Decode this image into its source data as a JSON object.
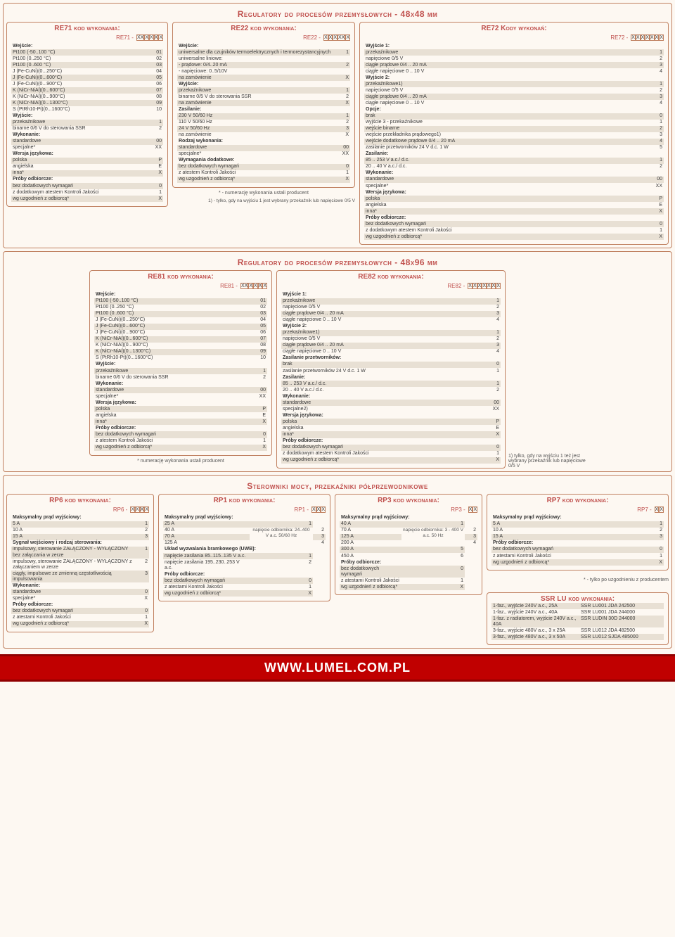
{
  "sec1_title": "Regulatory do procesów przemysłowych - 48x48 mm",
  "sec2_title": "Regulatory do procesów przemysłowych - 48x96 mm",
  "sec3_title": "Sterowniki mocy, przekaźniki półprzewodnikowe",
  "footer": "WWW.LUMEL.COM.PL",
  "re71": {
    "title": "RE71 kod wykonania:",
    "code_label": "RE71 -",
    "code_cells": [
      "XX",
      "X",
      "X",
      "X",
      "X"
    ],
    "rows": [
      {
        "h": "Wejście:"
      },
      {
        "l": "Pt100 (-50..100 °C)",
        "v": "01",
        "s": 1
      },
      {
        "l": "Pt100 (0..250 °C)",
        "v": "02"
      },
      {
        "l": "Pt100 (0..600 °C)",
        "v": "03",
        "s": 1
      },
      {
        "l": "J (Fe-CuNi)(0...250°C)",
        "v": "04"
      },
      {
        "l": "J (Fe-CuNi)(0...600°C)",
        "v": "05",
        "s": 1
      },
      {
        "l": "J (Fe-CuNi)(0...900°C)",
        "v": "06"
      },
      {
        "l": "K (NiCr-NiAl)(0...600°C)",
        "v": "07",
        "s": 1
      },
      {
        "l": "K (NiCr-NiAl)(0...900°C)",
        "v": "08"
      },
      {
        "l": "K (NiCr-NiAl)(0...1300°C)",
        "v": "09",
        "s": 1
      },
      {
        "l": "S (PtRh10-Pt)(0...1600°C)",
        "v": "10"
      },
      {
        "h": "Wyjście:"
      },
      {
        "l": "przekaźnikowe",
        "v": "1",
        "s": 1
      },
      {
        "l": "binarne 0/6 V do sterowania SSR",
        "v": "2"
      },
      {
        "h": "Wykonanie:"
      },
      {
        "l": "standardowe",
        "v": "00",
        "s": 1
      },
      {
        "l": "specjalne*",
        "v": "XX"
      },
      {
        "h": "Wersja językowa:"
      },
      {
        "l": "polska",
        "v": "P",
        "s": 1
      },
      {
        "l": "angielska",
        "v": "E"
      },
      {
        "l": "inna*",
        "v": "X",
        "s": 1
      },
      {
        "h": "Próby odbiorcze:"
      },
      {
        "l": "bez dodatkowych wymagań",
        "v": "0",
        "s": 1
      },
      {
        "l": "z dodatkowym atestem Kontroli Jakości",
        "v": "1"
      },
      {
        "l": "wg uzgodnień z odbiorcą*",
        "v": "X",
        "s": 1
      }
    ]
  },
  "re22": {
    "title": "RE22 kod wykonania:",
    "code_label": "RE22 -",
    "code_cells": [
      "X",
      "X",
      "X",
      "XX",
      "X"
    ],
    "rows": [
      {
        "h": "Wejście:"
      },
      {
        "l": "uniwersalne dla czujników termoelektrycznych i termorezystancyjnych",
        "v": "1",
        "s": 1
      },
      {
        "l": "uniwersalne liniowe:",
        "v": ""
      },
      {
        "l": "- prądowe: 0/4..20 mA",
        "v": "2",
        "s": 1
      },
      {
        "l": "- napięciowe: 0..5/10V",
        "v": ""
      },
      {
        "l": "na zamówienie",
        "v": "X",
        "s": 1
      },
      {
        "h": "Wyjście:"
      },
      {
        "l": "przekaźnikowe",
        "v": "1",
        "s": 1
      },
      {
        "l": "binarne 0/5 V do sterowania SSR",
        "v": "2"
      },
      {
        "l": "na zamówienie",
        "v": "X",
        "s": 1
      },
      {
        "h": "Zasilanie:"
      },
      {
        "l": "230 V 50/60 Hz",
        "v": "1",
        "s": 1
      },
      {
        "l": "110 V 50/60 Hz",
        "v": "2"
      },
      {
        "l": "24 V 50/60 Hz",
        "v": "3",
        "s": 1
      },
      {
        "l": "na zamówienie",
        "v": "X"
      },
      {
        "h": "Rodzaj wykonania:"
      },
      {
        "l": "standardowe",
        "v": "00",
        "s": 1
      },
      {
        "l": "specjalne*",
        "v": "XX"
      },
      {
        "h": "Wymagania dodatkowe:"
      },
      {
        "l": "bez dodatkowych wymagań",
        "v": "0",
        "s": 1
      },
      {
        "l": "z atestem Kontroli Jakości",
        "v": "1"
      },
      {
        "l": "wg uzgodnień z odbiorcą*",
        "v": "X",
        "s": 1
      }
    ],
    "foot1": "* - numerację wykonania ustali producent",
    "foot2": "1) - tylko, gdy na wyjściu 1 jest wybrany przekaźnik lub napięciowe 0/5 V"
  },
  "re72": {
    "title": "RE72 Kody wykonań:",
    "code_label": "RE72 -",
    "code_cells": [
      "X",
      "X",
      "X",
      "X",
      "X",
      "X",
      "X"
    ],
    "rows": [
      {
        "h": "Wyjście 1:"
      },
      {
        "l": "przekaźnikowe",
        "v": "1",
        "s": 1
      },
      {
        "l": "napięciowe 0/5 V",
        "v": "2"
      },
      {
        "l": "ciągłe prądowe 0/4 .. 20 mA",
        "v": "3",
        "s": 1
      },
      {
        "l": "ciągłe napięciowe 0 .. 10 V",
        "v": "4"
      },
      {
        "h": "Wyjście 2:"
      },
      {
        "l": "przekaźnikowe1)",
        "v": "1",
        "s": 1
      },
      {
        "l": "napięciowe 0/5 V",
        "v": "2"
      },
      {
        "l": "ciągłe prądowe 0/4 .. 20 mA",
        "v": "3",
        "s": 1
      },
      {
        "l": "ciągłe napięciowe 0 .. 10 V",
        "v": "4"
      },
      {
        "h": "Opcje:"
      },
      {
        "l": "brak",
        "v": "0",
        "s": 1
      },
      {
        "l": "wyjście 3 - przekaźnikowe",
        "v": "1"
      },
      {
        "l": "wejście binarne",
        "v": "2",
        "s": 1
      },
      {
        "l": "wejście przekładnika prądowego1)",
        "v": "3"
      },
      {
        "l": "wejście dodatkowe prądowe 0/4 .. 20 mA",
        "v": "4",
        "s": 1
      },
      {
        "l": "zasilanie przetworników 24 V d.c. 1 W",
        "v": "5"
      },
      {
        "h": "Zasilanie:"
      },
      {
        "l": "85 .. 253 V a.c./ d.c.",
        "v": "1",
        "s": 1
      },
      {
        "l": "20 .. 40 V a.c./ d.c.",
        "v": "2"
      },
      {
        "h": "Wykonanie:"
      },
      {
        "l": "standardowe",
        "v": "00",
        "s": 1
      },
      {
        "l": "specjalne*",
        "v": "XX"
      },
      {
        "h": "Wersja językowa:"
      },
      {
        "l": "polska",
        "v": "P",
        "s": 1
      },
      {
        "l": "angielska",
        "v": "E"
      },
      {
        "l": "inna*",
        "v": "X",
        "s": 1
      },
      {
        "h": "Próby odbiorcze:"
      },
      {
        "l": "bez dodatkowych wymagań",
        "v": "0",
        "s": 1
      },
      {
        "l": "z dodatkowym atestem Kontroli Jakości",
        "v": "1"
      },
      {
        "l": "wg uzgodnień z odbiorcą*",
        "v": "X",
        "s": 1
      }
    ]
  },
  "re81": {
    "title": "RE81 kod wykonania:",
    "code_label": "RE81 -",
    "code_cells": [
      "XX",
      "X",
      "X",
      "X",
      "X"
    ],
    "rows": [
      {
        "h": "Wejście:"
      },
      {
        "l": "Pt100 (-50..100 °C)",
        "v": "01",
        "s": 1
      },
      {
        "l": "Pt100 (0..250 °C)",
        "v": "02"
      },
      {
        "l": "Pt100 (0..600 °C)",
        "v": "03",
        "s": 1
      },
      {
        "l": "J (Fe-CuNi)(0...250°C)",
        "v": "04"
      },
      {
        "l": "J (Fe-CuNi)(0...600°C)",
        "v": "05",
        "s": 1
      },
      {
        "l": "J (Fe-CuNi)(0...900°C)",
        "v": "06"
      },
      {
        "l": "K (NiCr-NiAl)(0...600°C)",
        "v": "07",
        "s": 1
      },
      {
        "l": "K (NiCr-NiAl)(0...900°C)",
        "v": "08"
      },
      {
        "l": "K (NiCr-NiAl)(0...1300°C)",
        "v": "09",
        "s": 1
      },
      {
        "l": "S (PtRh10-Pt)(0...1600°C)",
        "v": "10"
      },
      {
        "h": "Wyjście:"
      },
      {
        "l": "przekaźnikowe",
        "v": "1",
        "s": 1
      },
      {
        "l": "binarne 0/6 V do sterowania SSR",
        "v": "2"
      },
      {
        "h": "Wykonanie:"
      },
      {
        "l": "standardowe",
        "v": "00",
        "s": 1
      },
      {
        "l": "specjalne*",
        "v": "XX"
      },
      {
        "h": "Wersja językowa:"
      },
      {
        "l": "polska",
        "v": "P",
        "s": 1
      },
      {
        "l": "angielska",
        "v": "E"
      },
      {
        "l": "inna*",
        "v": "X",
        "s": 1
      },
      {
        "h": "Próby odbiorcze:"
      },
      {
        "l": "bez dodatkowych wymagań",
        "v": "0",
        "s": 1
      },
      {
        "l": "z atestem Kontroli Jakości",
        "v": "1"
      },
      {
        "l": "wg uzgodnień z odbiorcą*",
        "v": "X",
        "s": 1
      }
    ],
    "foot": "* numerację wykonania ustali producent"
  },
  "re82": {
    "title": "RE82 kod wykonania:",
    "code_label": "RE82 -",
    "code_cells": [
      "X",
      "X",
      "X",
      "X",
      "X",
      "X",
      "X"
    ],
    "rows": [
      {
        "h": "Wyjście 1:"
      },
      {
        "l": "przekaźnikowe",
        "v": "1",
        "s": 1
      },
      {
        "l": "napięciowe 0/5 V",
        "v": "2"
      },
      {
        "l": "ciągłe prądowe 0/4 .. 20 mA",
        "v": "3",
        "s": 1
      },
      {
        "l": "ciągłe napięciowe 0 .. 10 V",
        "v": "4"
      },
      {
        "h": "Wyjście 2:"
      },
      {
        "l": "przekaźnikowe1)",
        "v": "1",
        "s": 1
      },
      {
        "l": "napięciowe 0/5 V",
        "v": "2"
      },
      {
        "l": "ciągłe prądowe 0/4 .. 20 mA",
        "v": "3",
        "s": 1
      },
      {
        "l": "ciągłe napięciowe 0 .. 10 V",
        "v": "4"
      },
      {
        "h": "Zasilanie przetworników:"
      },
      {
        "l": "brak",
        "v": "0",
        "s": 1
      },
      {
        "l": "zasilanie przetworników 24 V d.c. 1 W",
        "v": "1"
      },
      {
        "h": "Zasilanie:"
      },
      {
        "l": "85 .. 253 V a.c./ d.c.",
        "v": "1",
        "s": 1
      },
      {
        "l": "20 .. 40 V a.c./ d.c.",
        "v": "2"
      },
      {
        "h": "Wykonanie:"
      },
      {
        "l": "standardowe",
        "v": "00",
        "s": 1
      },
      {
        "l": "specjalne2)",
        "v": "XX"
      },
      {
        "h": "Wersja językowa:"
      },
      {
        "l": "polska",
        "v": "P",
        "s": 1
      },
      {
        "l": "angielska",
        "v": "E"
      },
      {
        "l": "inna*",
        "v": "X",
        "s": 1
      },
      {
        "h": "Próby odbiorcze:"
      },
      {
        "l": "bez dodatkowych wymagań",
        "v": "0",
        "s": 1
      },
      {
        "l": "z dodatkowym atestem Kontroli Jakości",
        "v": "1"
      },
      {
        "l": "wg uzgodnień z odbiorcą*",
        "v": "X",
        "s": 1
      }
    ],
    "foot": "1) tylko, gdy na wyjściu 1 też jest wybrany przekaźnik lub napięciowe 0/5 V"
  },
  "rp6": {
    "title": "RP6 kod wykonania:",
    "code_label": "RP6 -",
    "code_cells": [
      "X",
      "X",
      "X",
      "X"
    ],
    "rows": [
      {
        "h": "Maksymalny prąd wyjściowy:"
      },
      {
        "l": "5 A",
        "v": "1",
        "s": 1
      },
      {
        "l": "10 A",
        "v": "2"
      },
      {
        "l": "15 A",
        "v": "3",
        "s": 1
      },
      {
        "h": "Sygnał wejściowy i rodzaj sterowania:"
      },
      {
        "l": "impulsowy, sterowanie ZAŁĄCZONY - WYŁĄCZONY bez załączania w zerze",
        "v": "1",
        "s": 1
      },
      {
        "l": "impulsowy, sterowanie ZAŁĄCZONY - WYŁĄCZONY z załączaniem w zerze",
        "v": "2"
      },
      {
        "l": "ciągły, impulsowe ze zmienną częstotliwością impulsowania",
        "v": "3",
        "s": 1
      },
      {
        "h": "Wykonanie:"
      },
      {
        "l": "standardowe",
        "v": "0",
        "s": 1
      },
      {
        "l": "specjalne*",
        "v": "X"
      },
      {
        "h": "Próby odbiorcze:"
      },
      {
        "l": "bez dodatkowych wymagań",
        "v": "0",
        "s": 1
      },
      {
        "l": "z atestami Kontroli Jakości",
        "v": "1"
      },
      {
        "l": "wg uzgodnień z odbiorcą*",
        "v": "X",
        "s": 1
      }
    ]
  },
  "rp1": {
    "title": "RP1 kod wykonania:",
    "code_label": "RP1 -",
    "code_cells": [
      "X",
      "X",
      "X"
    ],
    "rows": [
      {
        "h": "Maksymalny prąd wyjściowy:"
      },
      {
        "l": "25 A",
        "v": "1",
        "s": 1
      },
      {
        "l": "40 A",
        "v": "2"
      },
      {
        "l": "70 A",
        "v": "3",
        "s": 1
      },
      {
        "l": "125 A",
        "v": "4"
      },
      {
        "h": "Układ wyzwalania bramkowego (UWB):"
      },
      {
        "l": "napięcie zasilania 85..115..135 V a.c.",
        "v": "1",
        "s": 1
      },
      {
        "l": "napięcie zasilania  195..230..253 V a.c.",
        "v": "2"
      },
      {
        "h": "Próby odbiorcze:"
      },
      {
        "l": "bez dodatkowych wymagań",
        "v": "0",
        "s": 1
      },
      {
        "l": "z atestami Kontroli Jakości",
        "v": "1"
      },
      {
        "l": "wg uzgodnień z odbiorcą*",
        "v": "X",
        "s": 1
      }
    ],
    "sub": "napięcie odbiornika: 24..400 V a.c. 50/60 Hz"
  },
  "rp3": {
    "title": "RP3 kod wykonania:",
    "code_label": "RP3 -",
    "code_cells": [
      "X",
      "X"
    ],
    "rows": [
      {
        "h": "Maksymalny prąd wyjściowy:"
      },
      {
        "l": "40 A",
        "v": "1",
        "s": 1
      },
      {
        "l": "70 A",
        "v": "2"
      },
      {
        "l": "125 A",
        "v": "3",
        "s": 1
      },
      {
        "l": "200 A",
        "v": "4"
      },
      {
        "l": "300 A",
        "v": "5",
        "s": 1
      },
      {
        "l": "450 A",
        "v": "6"
      },
      {
        "h": "Próby odbiorcze:"
      },
      {
        "l": "bez dodatkowych wymagań",
        "v": "0",
        "s": 1
      },
      {
        "l": "z atestami Kontroli Jakości",
        "v": "1"
      },
      {
        "l": "wg uzgodnień z odbiorcą*",
        "v": "X",
        "s": 1
      }
    ],
    "sub": "napięcie odbiornika: 3 - 400 V a.c. 50 Hz"
  },
  "rp7": {
    "title": "RP7 kod wykonania:",
    "code_label": "RP7 -",
    "code_cells": [
      "X",
      "X"
    ],
    "rows": [
      {
        "h": "Maksymalny prąd wyjściowy:"
      },
      {
        "l": "5 A",
        "v": "1",
        "s": 1
      },
      {
        "l": "10 A",
        "v": "2"
      },
      {
        "l": "15 A",
        "v": "3",
        "s": 1
      },
      {
        "h": "Próby odbiorcze:"
      },
      {
        "l": "bez dodatkowych wymagań",
        "v": "0",
        "s": 1
      },
      {
        "l": "z atestami Kontroli Jakości",
        "v": "1"
      },
      {
        "l": "wg uzgodnień z odbiorcą*",
        "v": "X",
        "s": 1
      }
    ],
    "foot": "* - tylko po uzgodnieniu z producentem"
  },
  "ssr": {
    "title": "SSR LU kod wykonania:",
    "rows": [
      {
        "l": "1-faz., wyjście 240V a.c., 25A",
        "v": "SSR LU001 JDA 242500",
        "s": 1
      },
      {
        "l": "1-faz., wyjście 240V a.c., 40A",
        "v": "SSR LU001 JDA 244000"
      },
      {
        "l": "1-faz. z radiatorem, wyjście 240V a.c., 40A",
        "v": "SSR LUDIN 30D 244000",
        "s": 1
      },
      {
        "l": "3-faz., wyjście 480V a.c., 3 x 25A",
        "v": "SSR LU012 JDA 482500"
      },
      {
        "l": "3-faz., wyjście 480V a.c., 3 x 50A",
        "v": "SSR LU012 SJDA 485000",
        "s": 1
      }
    ]
  }
}
